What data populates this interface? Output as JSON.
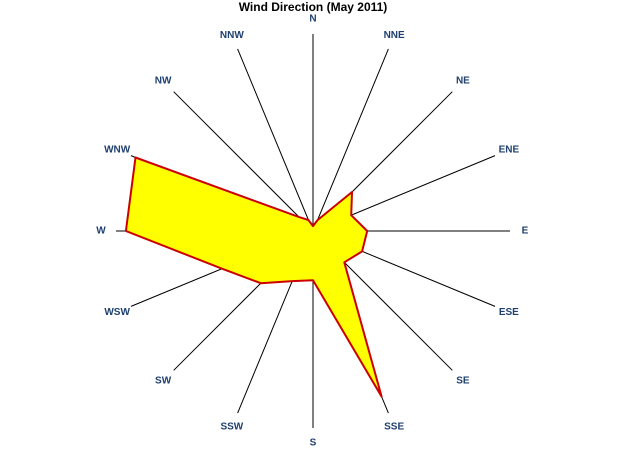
{
  "chart_data": {
    "type": "radar",
    "title": "Wind Direction (May 2011)",
    "categories": [
      "N",
      "NNE",
      "NE",
      "ENE",
      "E",
      "ESE",
      "SE",
      "SSE",
      "S",
      "SSW",
      "SW",
      "WSW",
      "W",
      "WNW",
      "NW",
      "NNW"
    ],
    "values": [
      5,
      12,
      56,
      42,
      55,
      54,
      45,
      182,
      50,
      55,
      75,
      100,
      190,
      195,
      20,
      12
    ],
    "rlim": [
      0,
      200
    ],
    "color": "#ffff00",
    "edge_color": "#cc0000"
  }
}
